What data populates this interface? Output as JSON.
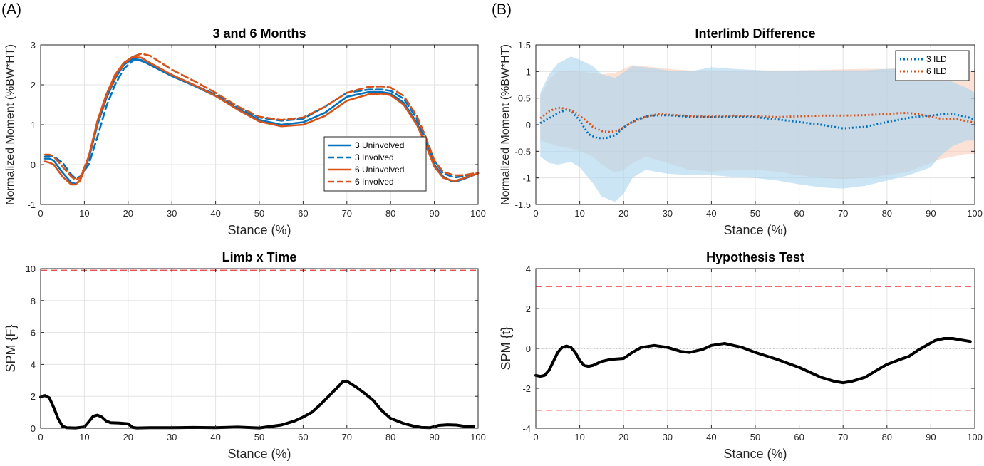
{
  "panels": {
    "a_label": "(A)",
    "b_label": "(B)"
  },
  "chart_data": [
    {
      "id": "moments",
      "type": "line",
      "title": "3 and 6 Months",
      "xlabel": "Stance (%)",
      "ylabel": "Normalized Moment (%BW*HT)",
      "xlim": [
        0,
        100
      ],
      "ylim": [
        -1,
        3
      ],
      "xticks": [
        0,
        10,
        20,
        30,
        40,
        50,
        60,
        70,
        80,
        90,
        100
      ],
      "yticks": [
        -1,
        0,
        1,
        2,
        3
      ],
      "grid": true,
      "legend": "bottom-right",
      "series": [
        {
          "name": "3 Uninvolved",
          "color": "#0072BD",
          "dash": "solid",
          "x": [
            1,
            2,
            3,
            5,
            7,
            8,
            9,
            11,
            13,
            15,
            17,
            19,
            21,
            23,
            25,
            30,
            35,
            40,
            45,
            50,
            55,
            60,
            65,
            70,
            75,
            78,
            80,
            83,
            86,
            88,
            90,
            92,
            94,
            95,
            97,
            100
          ],
          "y": [
            0.15,
            0.15,
            0.1,
            -0.2,
            -0.45,
            -0.48,
            -0.4,
            0.15,
            1.0,
            1.65,
            2.15,
            2.5,
            2.65,
            2.62,
            2.5,
            2.22,
            1.98,
            1.72,
            1.4,
            1.12,
            1.0,
            1.06,
            1.3,
            1.7,
            1.82,
            1.82,
            1.78,
            1.55,
            1.05,
            0.55,
            0.0,
            -0.3,
            -0.42,
            -0.42,
            -0.35,
            -0.22
          ]
        },
        {
          "name": "3 Involved",
          "color": "#0072BD",
          "dash": "dashed",
          "x": [
            1,
            2,
            3,
            5,
            7,
            8,
            9,
            11,
            13,
            15,
            17,
            19,
            21,
            22,
            23,
            25,
            30,
            35,
            40,
            45,
            50,
            55,
            60,
            65,
            70,
            75,
            78,
            80,
            83,
            86,
            88,
            90,
            92,
            94,
            95,
            97,
            100
          ],
          "y": [
            0.2,
            0.22,
            0.2,
            0.05,
            -0.25,
            -0.35,
            -0.3,
            0.0,
            0.7,
            1.45,
            2.0,
            2.4,
            2.6,
            2.63,
            2.6,
            2.52,
            2.25,
            2.0,
            1.75,
            1.43,
            1.18,
            1.1,
            1.15,
            1.45,
            1.8,
            1.88,
            1.88,
            1.85,
            1.65,
            1.15,
            0.65,
            0.1,
            -0.22,
            -0.3,
            -0.32,
            -0.28,
            -0.2
          ]
        },
        {
          "name": "6 Uninvolved",
          "color": "#D95319",
          "dash": "solid",
          "x": [
            1,
            2,
            3,
            5,
            7,
            8,
            9,
            11,
            13,
            15,
            17,
            19,
            21,
            23,
            25,
            30,
            35,
            40,
            45,
            50,
            55,
            60,
            65,
            70,
            75,
            78,
            80,
            83,
            86,
            88,
            90,
            92,
            94,
            95,
            97,
            100
          ],
          "y": [
            0.08,
            0.05,
            0.0,
            -0.3,
            -0.5,
            -0.5,
            -0.4,
            0.2,
            1.1,
            1.75,
            2.25,
            2.55,
            2.7,
            2.68,
            2.55,
            2.25,
            2.0,
            1.72,
            1.38,
            1.08,
            0.96,
            1.0,
            1.22,
            1.6,
            1.76,
            1.78,
            1.74,
            1.5,
            1.0,
            0.5,
            -0.05,
            -0.33,
            -0.4,
            -0.4,
            -0.33,
            -0.22
          ]
        },
        {
          "name": "6 Involved",
          "color": "#D95319",
          "dash": "dashed",
          "x": [
            1,
            2,
            3,
            5,
            7,
            8,
            9,
            11,
            13,
            15,
            17,
            19,
            21,
            23,
            25,
            30,
            35,
            40,
            45,
            50,
            55,
            60,
            65,
            70,
            75,
            78,
            80,
            83,
            86,
            88,
            90,
            92,
            94,
            95,
            97,
            100
          ],
          "y": [
            0.25,
            0.25,
            0.2,
            -0.05,
            -0.3,
            -0.38,
            -0.33,
            0.2,
            1.05,
            1.7,
            2.2,
            2.52,
            2.7,
            2.78,
            2.73,
            2.38,
            2.1,
            1.8,
            1.46,
            1.2,
            1.12,
            1.18,
            1.45,
            1.8,
            1.95,
            1.96,
            1.93,
            1.72,
            1.22,
            0.7,
            0.1,
            -0.18,
            -0.25,
            -0.27,
            -0.26,
            -0.2
          ]
        }
      ]
    },
    {
      "id": "ild",
      "type": "line",
      "title": "Interlimb Difference",
      "xlabel": "Stance (%)",
      "ylabel": "Normalized Moment (%BW*HT)",
      "xlim": [
        0,
        100
      ],
      "ylim": [
        -1.5,
        1.5
      ],
      "xticks": [
        0,
        10,
        20,
        30,
        40,
        50,
        60,
        70,
        80,
        90,
        100
      ],
      "yticks": [
        -1.5,
        -1,
        -0.5,
        0,
        0.5,
        1,
        1.5
      ],
      "grid": true,
      "legend": "top-right",
      "bands": [
        {
          "color": "#F8C9B5",
          "opacity": 0.55,
          "x": [
            1,
            3,
            5,
            8,
            10,
            13,
            15,
            18,
            20,
            22,
            25,
            30,
            35,
            40,
            45,
            50,
            55,
            60,
            65,
            70,
            75,
            80,
            85,
            90,
            92,
            95,
            98,
            100
          ],
          "upper": [
            0.55,
            0.85,
            1.0,
            1.02,
            1.0,
            0.97,
            0.95,
            0.97,
            1.05,
            1.12,
            1.1,
            1.05,
            1.02,
            1.0,
            1.0,
            1.02,
            1.02,
            1.02,
            1.03,
            1.04,
            1.05,
            1.05,
            1.08,
            1.1,
            1.1,
            1.08,
            1.03,
            1.0
          ],
          "lower": [
            -0.3,
            -0.35,
            -0.4,
            -0.45,
            -0.5,
            -0.6,
            -0.75,
            -0.9,
            -0.85,
            -0.72,
            -0.6,
            -0.72,
            -0.85,
            -0.88,
            -0.85,
            -0.85,
            -0.88,
            -0.95,
            -1.0,
            -1.02,
            -1.0,
            -0.95,
            -0.88,
            -0.72,
            -0.65,
            -0.6,
            -0.55,
            -0.55
          ]
        },
        {
          "color": "#A9D4EE",
          "opacity": 0.6,
          "x": [
            1,
            3,
            5,
            8,
            10,
            13,
            15,
            18,
            20,
            22,
            25,
            30,
            35,
            40,
            45,
            50,
            55,
            60,
            65,
            70,
            75,
            80,
            85,
            90,
            92,
            95,
            98,
            100
          ],
          "upper": [
            0.6,
            0.95,
            1.15,
            1.28,
            1.22,
            1.1,
            0.95,
            0.88,
            0.98,
            1.1,
            1.08,
            1.02,
            1.0,
            1.08,
            1.05,
            1.03,
            1.0,
            1.02,
            1.02,
            1.02,
            1.02,
            1.05,
            1.05,
            1.0,
            0.95,
            0.8,
            0.7,
            0.6
          ],
          "lower": [
            -0.6,
            -0.72,
            -0.75,
            -0.7,
            -0.8,
            -1.1,
            -1.35,
            -1.45,
            -1.3,
            -1.0,
            -0.85,
            -0.92,
            -0.95,
            -0.95,
            -0.98,
            -1.0,
            -1.05,
            -1.12,
            -1.18,
            -1.2,
            -1.15,
            -1.05,
            -0.95,
            -0.8,
            -0.6,
            -0.4,
            -0.3,
            -0.3
          ]
        }
      ],
      "series": [
        {
          "name": "3 ILD",
          "color": "#0072BD",
          "dash": "dotted",
          "x": [
            1,
            3,
            5,
            7,
            8,
            10,
            12,
            14,
            16,
            18,
            20,
            23,
            26,
            30,
            35,
            40,
            45,
            50,
            55,
            60,
            65,
            70,
            75,
            80,
            85,
            88,
            90,
            93,
            95,
            98,
            100
          ],
          "y": [
            0.03,
            0.12,
            0.22,
            0.28,
            0.26,
            0.08,
            -0.18,
            -0.25,
            -0.25,
            -0.2,
            -0.05,
            0.1,
            0.17,
            0.18,
            0.15,
            0.14,
            0.15,
            0.14,
            0.1,
            0.05,
            0.0,
            -0.07,
            -0.04,
            0.05,
            0.13,
            0.16,
            0.17,
            0.2,
            0.2,
            0.15,
            0.1
          ]
        },
        {
          "name": "6 ILD",
          "color": "#D95319",
          "dash": "dotted",
          "x": [
            1,
            3,
            5,
            7,
            9,
            11,
            13,
            15,
            17,
            19,
            22,
            25,
            28,
            32,
            36,
            40,
            45,
            50,
            55,
            60,
            65,
            70,
            75,
            80,
            83,
            85,
            87,
            90,
            93,
            96,
            100
          ],
          "y": [
            0.12,
            0.25,
            0.32,
            0.3,
            0.23,
            0.1,
            -0.04,
            -0.12,
            -0.14,
            -0.1,
            0.05,
            0.15,
            0.2,
            0.18,
            0.16,
            0.15,
            0.17,
            0.16,
            0.14,
            0.16,
            0.17,
            0.17,
            0.18,
            0.2,
            0.22,
            0.22,
            0.2,
            0.15,
            0.1,
            0.1,
            0.04
          ]
        }
      ]
    },
    {
      "id": "anova",
      "type": "line",
      "title": "Limb x Time",
      "xlabel": "Stance (%)",
      "ylabel": "SPM {F}",
      "xlim": [
        0,
        100
      ],
      "ylim": [
        0,
        10
      ],
      "xticks": [
        0,
        10,
        20,
        30,
        40,
        50,
        60,
        70,
        80,
        90,
        100
      ],
      "yticks": [
        0,
        2,
        4,
        6,
        8,
        10
      ],
      "grid": true,
      "thresholds": [
        {
          "y": 9.9,
          "color": "#E8393B"
        }
      ],
      "series": [
        {
          "color": "#000000",
          "dash": "solid",
          "x": [
            0,
            1,
            2,
            3,
            4,
            5,
            6,
            8,
            10,
            11,
            12,
            13,
            14,
            15,
            16,
            18,
            20,
            21,
            22,
            25,
            30,
            35,
            40,
            45,
            50,
            55,
            58,
            60,
            62,
            64,
            66,
            68,
            69,
            70,
            72,
            74,
            76,
            78,
            80,
            83,
            85,
            87,
            89,
            91,
            93,
            95,
            97,
            99
          ],
          "y": [
            1.95,
            2.05,
            1.9,
            1.3,
            0.6,
            0.12,
            0.03,
            0.02,
            0.08,
            0.4,
            0.75,
            0.82,
            0.7,
            0.45,
            0.35,
            0.32,
            0.28,
            0.05,
            0.02,
            0.03,
            0.03,
            0.05,
            0.03,
            0.07,
            0.02,
            0.2,
            0.45,
            0.7,
            1.0,
            1.5,
            2.05,
            2.6,
            2.9,
            2.95,
            2.6,
            2.2,
            1.75,
            1.1,
            0.62,
            0.3,
            0.15,
            0.05,
            0.03,
            0.18,
            0.22,
            0.2,
            0.12,
            0.1
          ]
        }
      ]
    },
    {
      "id": "ttest",
      "type": "line",
      "title": "Hypothesis Test",
      "xlabel": "Stance (%)",
      "ylabel": "SPM {t}",
      "xlim": [
        0,
        100
      ],
      "ylim": [
        -4,
        4
      ],
      "xticks": [
        0,
        10,
        20,
        30,
        40,
        50,
        60,
        70,
        80,
        90,
        100
      ],
      "yticks": [
        -4,
        -2,
        0,
        2,
        4
      ],
      "grid": true,
      "thresholds": [
        {
          "y": 3.1,
          "color": "#E8393B"
        },
        {
          "y": -3.1,
          "color": "#E8393B"
        }
      ],
      "zero_line": true,
      "series": [
        {
          "color": "#000000",
          "dash": "solid",
          "x": [
            0,
            1,
            2,
            3,
            4,
            5,
            6,
            7,
            8,
            9,
            10,
            11,
            12,
            13,
            15,
            17,
            20,
            22,
            24,
            27,
            30,
            33,
            35,
            38,
            40,
            43,
            47,
            50,
            55,
            60,
            65,
            68,
            70,
            72,
            75,
            78,
            80,
            83,
            85,
            87,
            89,
            91,
            93,
            95,
            97,
            99
          ],
          "y": [
            -1.35,
            -1.4,
            -1.35,
            -1.1,
            -0.65,
            -0.2,
            0.05,
            0.12,
            0.05,
            -0.2,
            -0.6,
            -0.85,
            -0.9,
            -0.85,
            -0.65,
            -0.55,
            -0.5,
            -0.2,
            0.05,
            0.15,
            0.05,
            -0.15,
            -0.2,
            -0.05,
            0.15,
            0.25,
            0.05,
            -0.2,
            -0.55,
            -0.95,
            -1.45,
            -1.65,
            -1.72,
            -1.65,
            -1.45,
            -1.05,
            -0.8,
            -0.55,
            -0.4,
            -0.1,
            0.15,
            0.4,
            0.5,
            0.5,
            0.42,
            0.35
          ]
        }
      ]
    }
  ]
}
